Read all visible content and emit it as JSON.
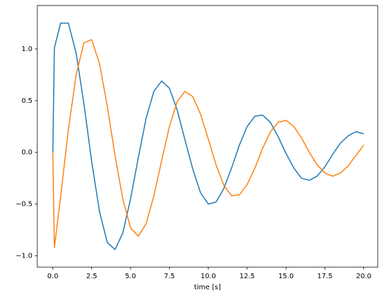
{
  "chart_data": {
    "type": "line",
    "xlabel": "time [s]",
    "x": [
      0,
      0.1,
      0.5,
      1,
      1.5,
      2,
      2.5,
      3,
      3.5,
      4,
      4.5,
      5,
      5.5,
      6,
      6.5,
      7,
      7.5,
      8,
      8.5,
      9,
      9.5,
      10,
      10.5,
      11,
      11.5,
      12,
      12.5,
      13,
      13.5,
      14,
      14.5,
      15,
      15.5,
      16,
      16.5,
      17,
      17.5,
      18,
      18.5,
      19,
      19.5,
      20
    ],
    "series": [
      {
        "color": "#1f77b4",
        "values": [
          0,
          1.01,
          1.25,
          1.25,
          0.96,
          0.47,
          -0.09,
          -0.57,
          -0.87,
          -0.94,
          -0.78,
          -0.45,
          -0.05,
          0.33,
          0.59,
          0.69,
          0.62,
          0.41,
          0.12,
          -0.16,
          -0.39,
          -0.5,
          -0.48,
          -0.35,
          -0.15,
          0.07,
          0.25,
          0.35,
          0.36,
          0.29,
          0.15,
          -0.01,
          -0.15,
          -0.25,
          -0.27,
          -0.23,
          -0.14,
          -0.02,
          0.09,
          0.16,
          0.2,
          0.18
        ]
      },
      {
        "color": "#ff7f0e",
        "values": [
          0,
          -0.92,
          -0.43,
          0.22,
          0.75,
          1.06,
          1.09,
          0.86,
          0.45,
          -0.03,
          -0.45,
          -0.73,
          -0.81,
          -0.69,
          -0.42,
          -0.08,
          0.25,
          0.49,
          0.59,
          0.54,
          0.37,
          0.13,
          -0.12,
          -0.32,
          -0.42,
          -0.41,
          -0.31,
          -0.15,
          0.04,
          0.2,
          0.29,
          0.31,
          0.25,
          0.14,
          0,
          -0.12,
          -0.2,
          -0.23,
          -0.2,
          -0.13,
          -0.03,
          0.07
        ]
      }
    ],
    "xlim": [
      -1,
      20.9
    ],
    "ylim": [
      -1.11,
      1.42
    ],
    "xticks": [
      {
        "value": 0,
        "label": "0.0"
      },
      {
        "value": 2.5,
        "label": "2.5"
      },
      {
        "value": 5,
        "label": "5.0"
      },
      {
        "value": 7.5,
        "label": "7.5"
      },
      {
        "value": 10,
        "label": "10.0"
      },
      {
        "value": 12.5,
        "label": "12.5"
      },
      {
        "value": 15,
        "label": "15.0"
      },
      {
        "value": 17.5,
        "label": "17.5"
      },
      {
        "value": 20,
        "label": "20.0"
      }
    ],
    "yticks": [
      {
        "value": -1,
        "label": "−1.0"
      },
      {
        "value": -0.5,
        "label": "−0.5"
      },
      {
        "value": 0,
        "label": "0.0"
      },
      {
        "value": 0.5,
        "label": "0.5"
      },
      {
        "value": 1,
        "label": "1.0"
      }
    ]
  }
}
